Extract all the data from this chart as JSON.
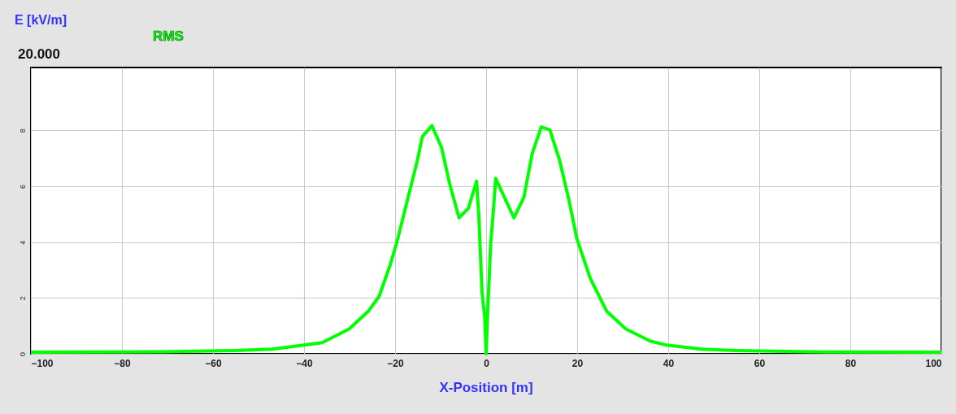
{
  "chart_data": {
    "type": "line",
    "xlabel": "X-Position [m]",
    "ylabel": "E [kV/m]",
    "annotations": [
      "20.000"
    ],
    "xlim": [
      -100,
      100
    ],
    "xticks": [
      -100,
      -80,
      -60,
      -40,
      -20,
      0,
      20,
      40,
      60,
      80,
      100
    ],
    "ylim": [
      0,
      10.25
    ],
    "yticks": [
      0,
      2,
      4,
      6,
      8
    ],
    "grid": true,
    "legend": "top left",
    "marker": "none",
    "line_style": "solid",
    "series": [
      {
        "name": "RMS",
        "color": "#00ff00",
        "x": [
          -100,
          -71,
          -55,
          -47,
          -40,
          -36,
          -30.1,
          -25.9,
          -23.5,
          -21.1,
          -19.6,
          -17.3,
          -15.2,
          -14.0,
          -11.9,
          -9.8,
          -8.0,
          -5.95,
          -3.9,
          -2.1,
          -1.6,
          -0.9,
          -0.3,
          0,
          0.3,
          1.0,
          1.5,
          2.1,
          6.1,
          8.3,
          10.1,
          12.1,
          14.0,
          16.1,
          18.2,
          19.9,
          22.9,
          26.5,
          30.7,
          36.0,
          39.6,
          47.3,
          55.0,
          71.1,
          100
        ],
        "values": [
          0.06,
          0.07,
          0.12,
          0.17,
          0.31,
          0.4,
          0.89,
          1.52,
          2.06,
          3.17,
          4.0,
          5.5,
          6.86,
          7.78,
          8.17,
          7.39,
          6.08,
          4.87,
          5.21,
          6.18,
          4.92,
          2.2,
          1.33,
          0,
          1.33,
          3.95,
          4.92,
          6.28,
          4.87,
          5.6,
          7.15,
          8.12,
          8.02,
          6.95,
          5.5,
          4.14,
          2.69,
          1.52,
          0.89,
          0.46,
          0.31,
          0.17,
          0.12,
          0.07,
          0.06
        ]
      }
    ]
  }
}
